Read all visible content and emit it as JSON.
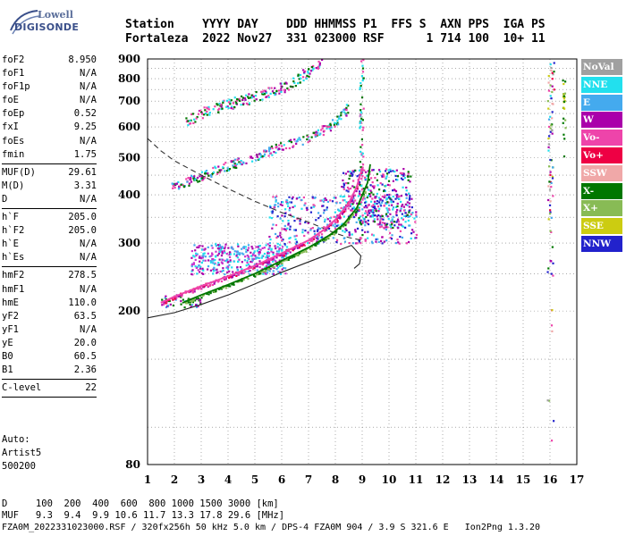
{
  "logo": {
    "line1": "Lowell",
    "line2": "DIGISONDE"
  },
  "header": {
    "line1": "Station    YYYY DAY    DDD HHMMSS P1  FFS S  AXN PPS  IGA PS",
    "line2": "Fortaleza  2022 Nov27  331 023000 RSF      1 714 100  10+ 11"
  },
  "params_groups": [
    [
      [
        "foF2",
        "8.950"
      ],
      [
        "foF1",
        "N/A"
      ],
      [
        "foF1p",
        "N/A"
      ],
      [
        "foE",
        "N/A"
      ],
      [
        "foEp",
        "0.52"
      ],
      [
        "fxI",
        "9.25"
      ],
      [
        "foEs",
        "N/A"
      ],
      [
        "fmin",
        "1.75"
      ]
    ],
    [
      [
        "MUF(D)",
        "29.61"
      ],
      [
        "M(D)",
        "3.31"
      ],
      [
        "D",
        "N/A"
      ]
    ],
    [
      [
        "h`F",
        "205.0"
      ],
      [
        "h`F2",
        "205.0"
      ],
      [
        "h`E",
        "N/A"
      ],
      [
        "h`Es",
        "N/A"
      ]
    ],
    [
      [
        "hmF2",
        "278.5"
      ],
      [
        "hmF1",
        "N/A"
      ],
      [
        "hmE",
        "110.0"
      ],
      [
        "yF2",
        "63.5"
      ],
      [
        "yF1",
        "N/A"
      ],
      [
        "yE",
        "20.0"
      ],
      [
        "B0",
        "60.5"
      ],
      [
        "B1",
        "2.36"
      ]
    ],
    [
      [
        "C-level",
        "22"
      ]
    ]
  ],
  "auto": [
    "Auto:",
    "Artist5",
    "500200"
  ],
  "d_muf": {
    "d_line": "D     100  200  400  600  800 1000 1500 3000 [km]",
    "muf_line": "MUF   9.3  9.4  9.9 10.6 11.7 13.3 17.8 29.6 [MHz]"
  },
  "footer": "FZA0M_2022331023000.RSF / 320fx256h 50 kHz 5.0 km / DPS-4 FZA0M 904 / 3.9 S 321.6 E   Ion2Png 1.3.20",
  "legend": [
    {
      "label": "NoVal",
      "color": "#a0a0a0"
    },
    {
      "label": "NNE",
      "color": "#22e0ee"
    },
    {
      "label": "E",
      "color": "#44aaee"
    },
    {
      "label": "W",
      "color": "#aa00aa"
    },
    {
      "label": "Vo-",
      "color": "#ee44aa"
    },
    {
      "label": "Vo+",
      "color": "#ee0044"
    },
    {
      "label": "SSW",
      "color": "#f0a8a8"
    },
    {
      "label": "X-",
      "color": "#007700"
    },
    {
      "label": "X+",
      "color": "#88bb55"
    },
    {
      "label": "SSE",
      "color": "#cccc11"
    },
    {
      "label": "NNW",
      "color": "#2222cc"
    }
  ],
  "chart_data": {
    "type": "scatter",
    "title": "",
    "xlabel": "",
    "ylabel": "",
    "xlim": [
      1,
      17
    ],
    "ylim": [
      80,
      900
    ],
    "x_ticks": [
      1,
      2,
      3,
      4,
      5,
      6,
      7,
      8,
      9,
      10,
      11,
      12,
      13,
      14,
      15,
      16,
      17
    ],
    "y_ticks": [
      80,
      200,
      300,
      400,
      500,
      600,
      700,
      800,
      900
    ],
    "y_scale": "log",
    "grid": true,
    "trace_o_mode": {
      "x": [
        1.5,
        2,
        3,
        4,
        5,
        6,
        7,
        7.5,
        8,
        8.5,
        8.8,
        9
      ],
      "y": [
        210,
        218,
        232,
        246,
        262,
        282,
        305,
        322,
        345,
        380,
        420,
        470
      ]
    },
    "trace_x_mode": {
      "x": [
        2.3,
        3,
        4,
        5,
        6,
        7,
        7.8,
        8.3,
        8.8,
        9.2,
        9.3
      ],
      "y": [
        210,
        220,
        234,
        250,
        270,
        292,
        315,
        335,
        370,
        430,
        480
      ]
    },
    "second_hop": {
      "x": [
        1.9,
        3,
        4,
        5,
        6,
        7,
        7.5,
        8,
        8.5
      ],
      "y": [
        420,
        450,
        478,
        505,
        535,
        565,
        590,
        620,
        680
      ]
    },
    "third_hop": {
      "x": [
        2.4,
        3,
        4,
        5,
        6,
        6.5,
        7,
        7.5
      ],
      "y": [
        620,
        655,
        690,
        720,
        760,
        790,
        840,
        900
      ]
    },
    "profile_solid": {
      "x": [
        1,
        2,
        3,
        4,
        5,
        6,
        7,
        8,
        8.6,
        8.95,
        8.9,
        8.7
      ],
      "y": [
        192,
        198,
        208,
        220,
        235,
        252,
        268,
        285,
        296,
        278,
        265,
        258
      ]
    },
    "muf_dashed": {
      "x": [
        1,
        1.5,
        2,
        3,
        4,
        5,
        6,
        7,
        8,
        8.5,
        9
      ],
      "y": [
        560,
        520,
        490,
        450,
        415,
        385,
        360,
        340,
        318,
        310,
        305
      ]
    }
  }
}
